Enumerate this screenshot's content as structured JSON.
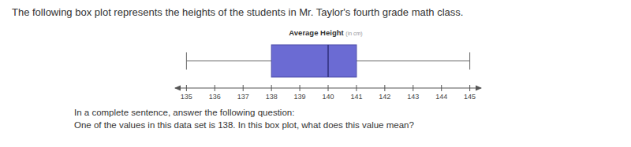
{
  "page": {
    "intro": "The following box plot represents the heights of the students in Mr. Taylor's fourth grade math class.",
    "instruction": "In a complete sentence, answer the following question:",
    "question": "One of the values in this data set is 138. In this box plot, what does this value mean?"
  },
  "chart_data": {
    "type": "box",
    "title": "Average Height",
    "subtitle": "(in cm)",
    "orientation": "horizontal",
    "box": {
      "min": 135,
      "q1": 138,
      "median": 140,
      "q3": 141,
      "max": 145
    },
    "color": "#6b6bd3",
    "xlim": [
      134.6,
      145.4
    ],
    "xticks": [
      135,
      136,
      137,
      138,
      139,
      140,
      141,
      142,
      143,
      144,
      145
    ]
  }
}
